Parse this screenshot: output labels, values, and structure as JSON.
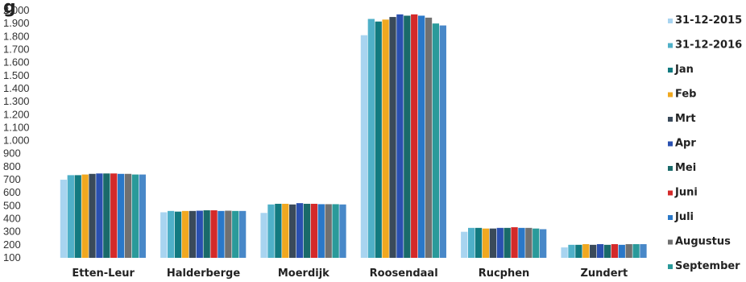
{
  "chart_data": {
    "type": "bar",
    "title_fragment": "g",
    "categories": [
      "Etten-Leur",
      "Halderberge",
      "Moerdijk",
      "Roosendaal",
      "Rucphen",
      "Zundert"
    ],
    "yticks": [
      "100",
      "200",
      "300",
      "400",
      "500",
      "600",
      "700",
      "800",
      "900",
      "1.000",
      "1.100",
      "1.200",
      "1.300",
      "1.400",
      "1.500",
      "1.600",
      "1.700",
      "1.800",
      "1.900",
      "2.000"
    ],
    "ylim": [
      100,
      2000
    ],
    "grid": false,
    "legend_position": "right",
    "series": [
      {
        "name": "31-12-2015",
        "color": "#a8d4f0",
        "values": [
          700,
          450,
          445,
          1810,
          300,
          180
        ]
      },
      {
        "name": "31-12-2016",
        "color": "#4fb0c8",
        "values": [
          735,
          460,
          510,
          1935,
          330,
          200
        ]
      },
      {
        "name": "Jan",
        "color": "#127a80",
        "values": [
          735,
          455,
          515,
          1915,
          330,
          200
        ]
      },
      {
        "name": "Feb",
        "color": "#f0a820",
        "values": [
          740,
          460,
          515,
          1930,
          325,
          205
        ]
      },
      {
        "name": "Mrt",
        "color": "#3a4a5a",
        "values": [
          745,
          460,
          510,
          1950,
          325,
          200
        ]
      },
      {
        "name": "Apr",
        "color": "#2a50b0",
        "values": [
          748,
          462,
          520,
          1970,
          330,
          205
        ]
      },
      {
        "name": "Mei",
        "color": "#1a6a6a",
        "values": [
          748,
          465,
          515,
          1960,
          330,
          200
        ]
      },
      {
        "name": "Juni",
        "color": "#d42a2a",
        "values": [
          748,
          465,
          515,
          1970,
          335,
          205
        ]
      },
      {
        "name": "Juli",
        "color": "#2a78c8",
        "values": [
          745,
          460,
          512,
          1960,
          330,
          200
        ]
      },
      {
        "name": "Augustus",
        "color": "#707070",
        "values": [
          745,
          462,
          512,
          1945,
          330,
          205
        ]
      },
      {
        "name": "September",
        "color": "#2a9a9a",
        "values": [
          740,
          460,
          512,
          1900,
          325,
          205
        ]
      },
      {
        "name": "",
        "color": "#4888c8",
        "values": [
          740,
          460,
          510,
          1885,
          320,
          205
        ]
      }
    ]
  }
}
